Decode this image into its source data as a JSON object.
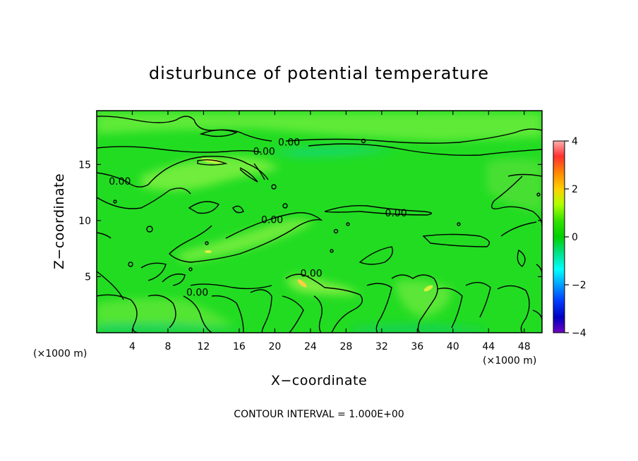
{
  "chart_data": {
    "type": "heatmap",
    "title": "disturbunce of potential temperature",
    "xlabel": "X−coordinate",
    "ylabel": "Z−coordinate",
    "x_unit": "(×1000 m)",
    "x_unit_right": "(×1000 m)",
    "x_ticks": [
      4,
      8,
      12,
      16,
      20,
      24,
      28,
      32,
      36,
      40,
      44,
      48
    ],
    "y_ticks": [
      5,
      10,
      15
    ],
    "xlim": [
      0,
      50
    ],
    "ylim": [
      0,
      19.8
    ],
    "colorbar": {
      "ticks": [
        "4",
        "2",
        "0",
        "−2",
        "−4"
      ],
      "range": [
        -4,
        4
      ],
      "colors": [
        "#ffb0b0",
        "#ff3030",
        "#ff8c00",
        "#ffd000",
        "#b0ff00",
        "#30e000",
        "#00d000",
        "#00e080",
        "#00ffff",
        "#00a0ff",
        "#0040ff",
        "#0000c0",
        "#7000c0"
      ]
    },
    "contour_labels": [
      {
        "text": "0.00",
        "x": 2.6,
        "z": 13.5
      },
      {
        "text": "0.00",
        "x": 18.8,
        "z": 16.2
      },
      {
        "text": "0.00",
        "x": 21.6,
        "z": 17.0
      },
      {
        "text": "0.00",
        "x": 19.7,
        "z": 10.1
      },
      {
        "text": "0.00",
        "x": 33.6,
        "z": 10.7
      },
      {
        "text": "0.00",
        "x": 24.1,
        "z": 5.3
      },
      {
        "text": "0.00",
        "x": 11.3,
        "z": 3.6
      }
    ],
    "footer": "CONTOUR INTERVAL = 1.000E+00"
  }
}
